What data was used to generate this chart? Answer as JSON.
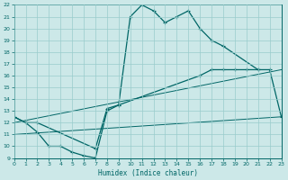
{
  "xlabel": "Humidex (Indice chaleur)",
  "bg_color": "#cce8e8",
  "line_color": "#006666",
  "grid_color": "#99cccc",
  "ylim": [
    9,
    22
  ],
  "xlim": [
    0,
    23
  ],
  "yticks": [
    9,
    10,
    11,
    12,
    13,
    14,
    15,
    16,
    17,
    18,
    19,
    20,
    21,
    22
  ],
  "xticks": [
    0,
    1,
    2,
    3,
    4,
    5,
    6,
    7,
    8,
    9,
    10,
    11,
    12,
    13,
    14,
    15,
    16,
    17,
    18,
    19,
    20,
    21,
    22,
    23
  ],
  "line1_x": [
    0,
    1,
    2,
    7,
    8,
    9,
    10,
    11,
    12,
    13,
    14,
    15,
    16,
    17,
    18,
    21
  ],
  "line1_y": [
    12.5,
    12.0,
    12.0,
    9.8,
    13.2,
    13.5,
    21.0,
    22.0,
    21.5,
    20.5,
    21.0,
    21.5,
    20.0,
    19.0,
    18.5,
    16.5
  ],
  "line2_x": [
    0,
    1,
    2,
    3,
    4,
    5,
    6,
    7,
    8,
    9,
    16,
    17,
    18,
    19,
    20,
    21,
    22,
    23
  ],
  "line2_y": [
    12.5,
    12.0,
    11.2,
    10.0,
    10.0,
    9.5,
    9.2,
    9.0,
    13.0,
    13.5,
    16.0,
    16.5,
    16.5,
    16.5,
    16.5,
    16.5,
    16.5,
    12.5
  ],
  "line3_x": [
    0,
    23
  ],
  "line3_y": [
    11.0,
    12.5
  ],
  "line4_x": [
    0,
    23
  ],
  "line4_y": [
    12.0,
    16.5
  ]
}
